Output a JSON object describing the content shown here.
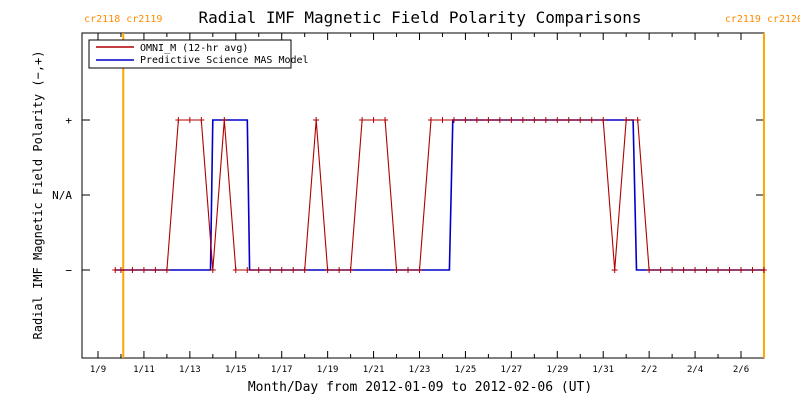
{
  "chart_data": {
    "type": "line",
    "title": "Radial IMF Magnetic Field Polarity Comparisons",
    "xlabel": "Month/Day from 2012-01-09 to 2012-02-06 (UT)",
    "ylabel": "Radial IMF Magnetic Field Polarity (−,+)",
    "x_range_days": [
      0,
      29
    ],
    "x_ticks": [
      {
        "day": 0,
        "label": "1/9"
      },
      {
        "day": 2,
        "label": "1/11"
      },
      {
        "day": 4,
        "label": "1/13"
      },
      {
        "day": 6,
        "label": "1/15"
      },
      {
        "day": 8,
        "label": "1/17"
      },
      {
        "day": 10,
        "label": "1/19"
      },
      {
        "day": 12,
        "label": "1/21"
      },
      {
        "day": 14,
        "label": "1/23"
      },
      {
        "day": 16,
        "label": "1/25"
      },
      {
        "day": 18,
        "label": "1/27"
      },
      {
        "day": 20,
        "label": "1/29"
      },
      {
        "day": 22,
        "label": "1/31"
      },
      {
        "day": 24,
        "label": "2/2"
      },
      {
        "day": 26,
        "label": "2/4"
      },
      {
        "day": 28,
        "label": "2/6"
      }
    ],
    "y_range": [
      -2,
      2
    ],
    "y_ticks": [
      {
        "value": 1,
        "label": "+"
      },
      {
        "value": 0,
        "label": "N/A"
      },
      {
        "value": -1,
        "label": "−"
      }
    ],
    "legend_position": "top-left",
    "carrington_markers": [
      {
        "day": 1.1,
        "left_label": "cr2118",
        "right_label": "cr2119",
        "color": "#ffa500"
      },
      {
        "day": 29.0,
        "left_label": "cr2119",
        "right_label": "cr2120",
        "color": "#ffa500"
      }
    ],
    "series": [
      {
        "name": "OMNI_M (12-hr avg)",
        "color": "#b00000",
        "marker": "+",
        "x": [
          0.75,
          1.0,
          1.5,
          2.0,
          2.5,
          3.0,
          3.5,
          4.0,
          4.5,
          5.0,
          5.5,
          6.0,
          6.5,
          7.0,
          7.5,
          8.0,
          8.5,
          9.0,
          9.5,
          10.0,
          10.5,
          11.0,
          11.5,
          12.0,
          12.5,
          13.0,
          13.5,
          14.0,
          14.5,
          15.0,
          15.5,
          16.0,
          16.5,
          17.0,
          17.5,
          18.0,
          18.5,
          19.0,
          19.5,
          20.0,
          20.5,
          21.0,
          21.5,
          22.0,
          22.5,
          23.0,
          23.5,
          24.0,
          24.5,
          25.0,
          25.5,
          26.0,
          26.5,
          27.0,
          27.5,
          28.0,
          28.5,
          29.0
        ],
        "y": [
          -1,
          -1,
          -1,
          -1,
          -1,
          -1,
          1,
          1,
          1,
          -1,
          1,
          -1,
          -1,
          -1,
          -1,
          -1,
          -1,
          -1,
          1,
          -1,
          -1,
          -1,
          1,
          1,
          1,
          -1,
          -1,
          -1,
          1,
          1,
          1,
          1,
          1,
          1,
          1,
          1,
          1,
          1,
          1,
          1,
          1,
          1,
          1,
          1,
          -1,
          1,
          1,
          -1,
          -1,
          -1,
          -1,
          -1,
          -1,
          -1,
          -1,
          -1,
          -1,
          -1
        ]
      },
      {
        "name": "Predictive Science MAS Model",
        "color": "#0000c8",
        "x": [
          0.75,
          4.9,
          5.0,
          6.5,
          6.6,
          15.3,
          15.45,
          23.3,
          23.45,
          29.0
        ],
        "y": [
          -1,
          -1,
          1,
          1,
          -1,
          -1,
          1,
          1,
          -1,
          -1
        ]
      }
    ]
  }
}
